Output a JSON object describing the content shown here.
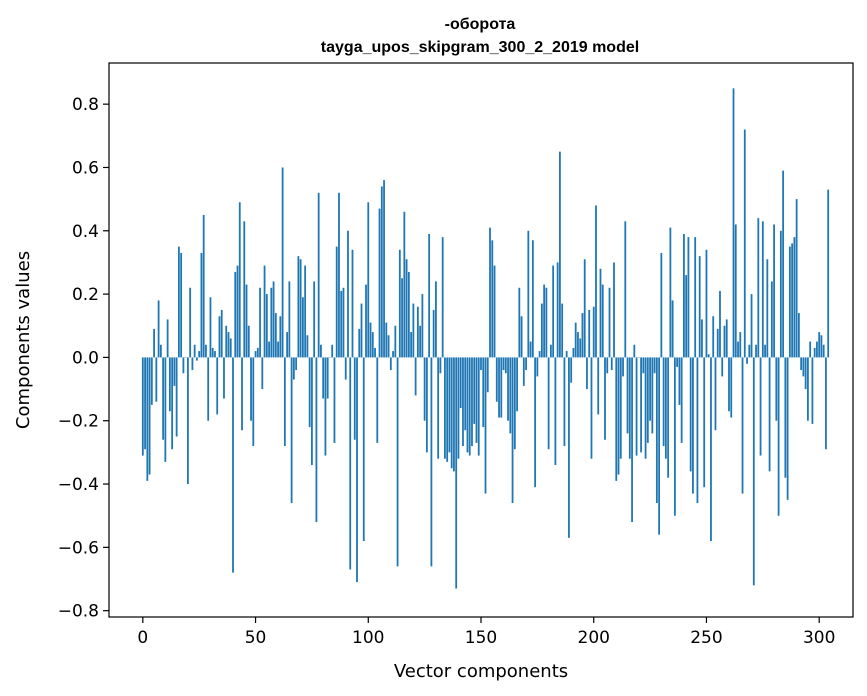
{
  "chart_data": {
    "type": "bar",
    "title_line1": "-оборота",
    "title_line2": "tayga_upos_skipgram_300_2_2019 model",
    "xlabel": "Vector components",
    "ylabel": "Components values",
    "xlim": [
      -15,
      315
    ],
    "ylim": [
      -0.82,
      0.93
    ],
    "xticks": [
      0,
      50,
      100,
      150,
      200,
      250,
      300
    ],
    "xtick_labels": [
      "0",
      "50",
      "100",
      "150",
      "200",
      "250",
      "300"
    ],
    "yticks": [
      -0.8,
      -0.6,
      -0.4,
      -0.2,
      0.0,
      0.2,
      0.4,
      0.6,
      0.8
    ],
    "ytick_labels": [
      "−0.8",
      "−0.6",
      "−0.4",
      "−0.2",
      "0.0",
      "0.2",
      "0.4",
      "0.6",
      "0.8"
    ],
    "bar_color": "#1f77b4",
    "values": [
      -0.31,
      -0.29,
      -0.39,
      -0.37,
      -0.15,
      0.09,
      -0.14,
      0.18,
      0.04,
      -0.26,
      -0.33,
      0.12,
      -0.17,
      -0.29,
      -0.09,
      -0.25,
      0.35,
      0.33,
      -0.05,
      0.0,
      -0.4,
      0.22,
      -0.04,
      0.04,
      -0.01,
      0.02,
      0.33,
      0.45,
      0.04,
      -0.2,
      0.19,
      0.03,
      0.02,
      -0.18,
      0.13,
      0.15,
      -0.13,
      0.1,
      0.08,
      0.06,
      -0.68,
      0.27,
      0.29,
      0.49,
      -0.23,
      0.43,
      0.23,
      0.1,
      -0.2,
      -0.28,
      0.02,
      0.03,
      0.22,
      -0.1,
      0.29,
      0.2,
      0.05,
      0.22,
      0.24,
      0.14,
      0.05,
      0.13,
      0.6,
      -0.28,
      0.08,
      0.24,
      -0.46,
      -0.07,
      -0.04,
      0.32,
      0.31,
      0.19,
      0.29,
      0.07,
      -0.22,
      -0.34,
      0.24,
      -0.52,
      0.52,
      0.04,
      -0.13,
      -0.31,
      -0.13,
      0.0,
      0.04,
      -0.27,
      0.35,
      0.52,
      0.21,
      0.22,
      -0.07,
      0.4,
      -0.67,
      0.34,
      -0.26,
      -0.71,
      0.09,
      0.17,
      -0.58,
      0.23,
      0.49,
      0.11,
      0.08,
      0.03,
      -0.27,
      0.47,
      0.54,
      0.56,
      0.11,
      0.07,
      -0.04,
      0.02,
      0.1,
      -0.66,
      0.34,
      0.25,
      0.46,
      0.31,
      0.27,
      0.08,
      0.17,
      -0.12,
      0.16,
      0.1,
      0.2,
      -0.2,
      -0.3,
      0.39,
      -0.66,
      0.15,
      0.24,
      -0.32,
      -0.05,
      0.38,
      -0.32,
      -0.33,
      -0.3,
      -0.35,
      -0.36,
      -0.73,
      -0.32,
      -0.16,
      -0.28,
      -0.23,
      -0.3,
      -0.31,
      -0.28,
      -0.21,
      -0.27,
      -0.31,
      -0.04,
      -0.22,
      -0.43,
      -0.11,
      0.41,
      0.37,
      0.29,
      -0.14,
      -0.19,
      -0.19,
      -0.04,
      -0.05,
      -0.2,
      -0.24,
      -0.46,
      -0.29,
      -0.17,
      0.22,
      0.13,
      -0.09,
      -0.04,
      0.4,
      0.05,
      0.37,
      -0.41,
      -0.06,
      0.02,
      0.17,
      0.23,
      0.22,
      -0.29,
      0.04,
      0.29,
      -0.34,
      0.3,
      0.65,
      0.17,
      -0.28,
      0.02,
      -0.57,
      -0.08,
      0.03,
      0.11,
      0.08,
      0.06,
      0.14,
      0.31,
      -0.1,
      0.15,
      -0.32,
      0.16,
      0.48,
      -0.18,
      0.28,
      0.23,
      -0.26,
      -0.05,
      0.22,
      -0.04,
      0.3,
      -0.39,
      -0.37,
      -0.32,
      -0.06,
      0.43,
      -0.24,
      -0.32,
      -0.52,
      0.04,
      -0.31,
      0.0,
      -0.3,
      -0.05,
      -0.32,
      -0.27,
      -0.2,
      -0.24,
      -0.05,
      -0.46,
      -0.56,
      0.33,
      -0.28,
      -0.32,
      -0.38,
      0.41,
      0.18,
      -0.5,
      -0.03,
      -0.15,
      -0.27,
      0.39,
      0.26,
      0.38,
      -0.36,
      -0.43,
      0.38,
      -0.46,
      0.32,
      0.12,
      -0.41,
      0.34,
      0.01,
      -0.58,
      0.13,
      -0.23,
      0.09,
      0.21,
      -0.06,
      0.1,
      0.12,
      -0.17,
      -0.19,
      0.85,
      0.42,
      0.05,
      0.08,
      -0.43,
      0.72,
      -0.02,
      0.04,
      0.2,
      -0.72,
      0.04,
      0.44,
      -0.31,
      0.43,
      0.04,
      0.31,
      -0.36,
      0.24,
      0.42,
      -0.2,
      -0.5,
      0.4,
      0.59,
      -0.38,
      -0.45,
      0.35,
      0.36,
      0.38,
      0.5,
      0.14,
      -0.04,
      -0.06,
      -0.1,
      -0.2,
      0.05,
      -0.21,
      0.03,
      0.05,
      0.08,
      0.07,
      0.04,
      -0.29,
      0.53
    ]
  }
}
